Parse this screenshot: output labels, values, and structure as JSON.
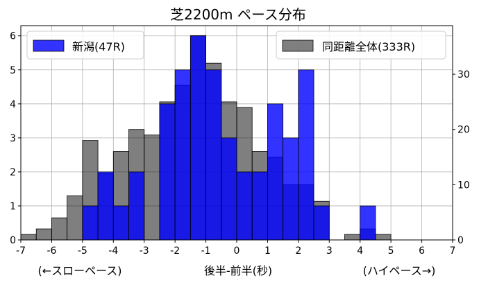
{
  "chart_data": {
    "type": "bar",
    "title": "芝2200m ペース分布",
    "xlabel": "後半-前半(秒)",
    "xlabel_left": "(←スローペース)",
    "xlabel_right": "(ハイペース→)",
    "xlim": [
      -7,
      7
    ],
    "xticks": [
      -7,
      -6,
      -5,
      -4,
      -3,
      -2,
      -1,
      0,
      1,
      2,
      3,
      4,
      5,
      6,
      7
    ],
    "bin_width": 0.5,
    "grid": true,
    "series": [
      {
        "name": "新潟(47R)",
        "axis": "left",
        "color": "#0000ff",
        "opacity": 0.8,
        "ylim": [
          0,
          6.3
        ],
        "yticks": [
          0,
          1,
          2,
          3,
          4,
          5,
          6
        ],
        "legend_position": "top-left",
        "bins": [
          {
            "x0": -5.0,
            "value": 1
          },
          {
            "x0": -4.5,
            "value": 2
          },
          {
            "x0": -4.0,
            "value": 1
          },
          {
            "x0": -3.5,
            "value": 2
          },
          {
            "x0": -2.5,
            "value": 4
          },
          {
            "x0": -2.0,
            "value": 5
          },
          {
            "x0": -1.5,
            "value": 6
          },
          {
            "x0": -1.0,
            "value": 5
          },
          {
            "x0": -0.5,
            "value": 3
          },
          {
            "x0": 0.0,
            "value": 2
          },
          {
            "x0": 0.5,
            "value": 2
          },
          {
            "x0": 1.0,
            "value": 4
          },
          {
            "x0": 1.5,
            "value": 3
          },
          {
            "x0": 2.0,
            "value": 5
          },
          {
            "x0": 2.5,
            "value": 1
          },
          {
            "x0": 4.0,
            "value": 1
          }
        ]
      },
      {
        "name": "同距離全体(333R)",
        "axis": "right",
        "color": "#000000",
        "opacity": 0.5,
        "ylim": [
          0,
          38.8
        ],
        "yticks": [
          0,
          10,
          20,
          30
        ],
        "legend_position": "top-right",
        "bins": [
          {
            "x0": -7.0,
            "value": 1
          },
          {
            "x0": -6.5,
            "value": 2
          },
          {
            "x0": -6.0,
            "value": 4
          },
          {
            "x0": -5.5,
            "value": 8
          },
          {
            "x0": -5.0,
            "value": 18
          },
          {
            "x0": -4.5,
            "value": 12
          },
          {
            "x0": -4.0,
            "value": 16
          },
          {
            "x0": -3.5,
            "value": 20
          },
          {
            "x0": -3.0,
            "value": 19
          },
          {
            "x0": -2.5,
            "value": 25
          },
          {
            "x0": -2.0,
            "value": 28
          },
          {
            "x0": -1.5,
            "value": 37
          },
          {
            "x0": -1.0,
            "value": 32
          },
          {
            "x0": -0.5,
            "value": 25
          },
          {
            "x0": 0.0,
            "value": 24
          },
          {
            "x0": 0.5,
            "value": 16
          },
          {
            "x0": 1.0,
            "value": 15
          },
          {
            "x0": 1.5,
            "value": 10
          },
          {
            "x0": 2.0,
            "value": 10
          },
          {
            "x0": 2.5,
            "value": 7
          },
          {
            "x0": 3.5,
            "value": 1
          },
          {
            "x0": 4.0,
            "value": 2
          },
          {
            "x0": 4.5,
            "value": 1
          }
        ]
      }
    ]
  }
}
